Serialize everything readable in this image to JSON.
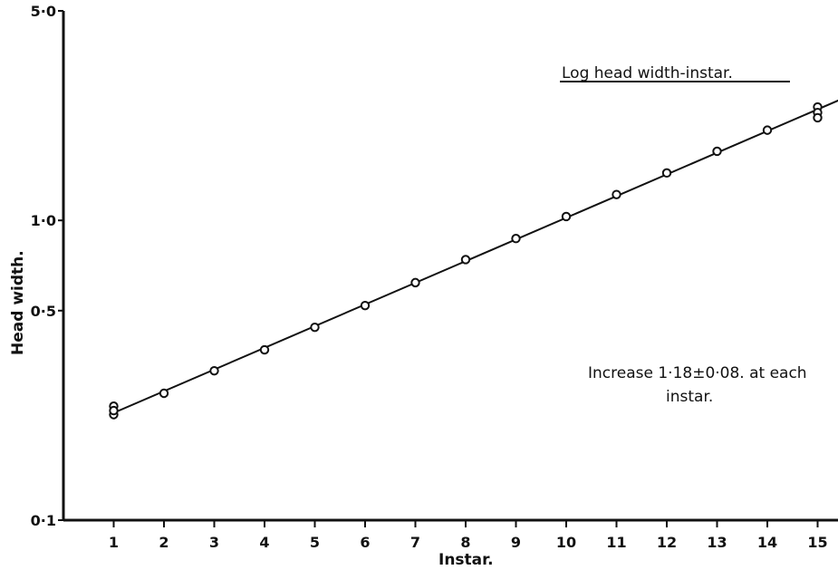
{
  "chart_data": {
    "type": "scatter",
    "title": "Log head width-instar.",
    "xlabel": "Instar.",
    "ylabel": "Head width.",
    "x_ticks": [
      1,
      2,
      3,
      4,
      5,
      6,
      7,
      8,
      9,
      10,
      11,
      12,
      13,
      14,
      15
    ],
    "y_ticks": [
      {
        "value": 0.1,
        "label": "0·1"
      },
      {
        "value": 0.5,
        "label": "0·5"
      },
      {
        "value": 1.0,
        "label": "1·0"
      },
      {
        "value": 5.0,
        "label": "5·0"
      }
    ],
    "y_scale": "log",
    "xlim": [
      0,
      15.5
    ],
    "ylim": [
      0.1,
      5.0
    ],
    "grid": false,
    "annotation": {
      "line1": "Increase  1·18±0·08.  at each",
      "line2": "instar."
    },
    "series": [
      {
        "points": [
          {
            "x": 1,
            "y": 0.24
          },
          {
            "x": 1,
            "y": 0.225
          },
          {
            "x": 1,
            "y": 0.232
          },
          {
            "x": 2,
            "y": 0.265
          },
          {
            "x": 3,
            "y": 0.315
          },
          {
            "x": 4,
            "y": 0.37
          },
          {
            "x": 5,
            "y": 0.44
          },
          {
            "x": 6,
            "y": 0.52
          },
          {
            "x": 7,
            "y": 0.62
          },
          {
            "x": 8,
            "y": 0.74
          },
          {
            "x": 9,
            "y": 0.87
          },
          {
            "x": 10,
            "y": 1.03
          },
          {
            "x": 11,
            "y": 1.22
          },
          {
            "x": 12,
            "y": 1.44
          },
          {
            "x": 13,
            "y": 1.7
          },
          {
            "x": 14,
            "y": 2.0
          },
          {
            "x": 15,
            "y": 2.39
          },
          {
            "x": 15,
            "y": 2.29
          },
          {
            "x": 15,
            "y": 2.2
          }
        ]
      }
    ],
    "fit_line": {
      "x": [
        1,
        15.5
      ],
      "y": [
        0.228,
        2.55
      ]
    }
  }
}
